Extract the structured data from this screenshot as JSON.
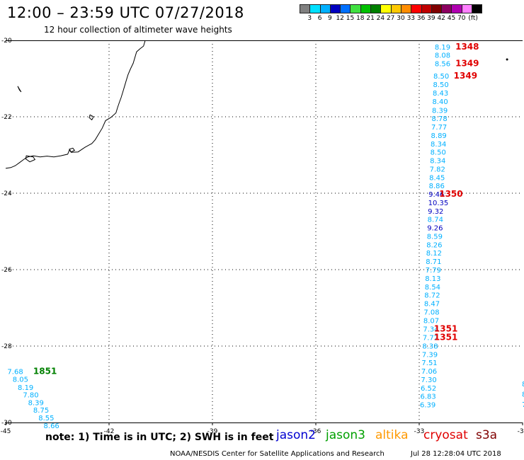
{
  "header": {
    "title": "12:00 – 23:59 UTC 07/27/2018",
    "subtitle": "12 hour collection of altimeter wave heights"
  },
  "colorbar": {
    "colors": [
      "#808080",
      "#00e0ff",
      "#00b0ff",
      "#0000c0",
      "#0070ff",
      "#40e040",
      "#00c000",
      "#008000",
      "#ffff00",
      "#ffc800",
      "#ff8c00",
      "#ff0000",
      "#c00000",
      "#800000",
      "#8c0060",
      "#b000b0",
      "#ff80ff",
      "#000000"
    ],
    "labels": [
      "3",
      "6",
      "9",
      "12",
      "15",
      "18",
      "21",
      "24",
      "27",
      "30",
      "33",
      "36",
      "39",
      "42",
      "45",
      "70",
      "(ft)"
    ]
  },
  "map": {
    "lon_range": [
      -45,
      -30
    ],
    "lat_range": [
      -30,
      -20
    ],
    "lon_ticks": [
      "-45",
      "-42",
      "-39",
      "-36",
      "-33",
      "-30"
    ],
    "lat_ticks": [
      "-20",
      "-22",
      "-24",
      "-26",
      "-28",
      "-30"
    ],
    "tracks": [
      {
        "satellite": "cryosat",
        "points": [
          {
            "lon": -32.55,
            "lat": -20.17,
            "value": "8.19",
            "color": "#00b0ff"
          },
          {
            "lon": -32.55,
            "lat": -20.38,
            "value": "8.08",
            "color": "#00b0ff"
          },
          {
            "lon": -32.55,
            "lat": -20.6,
            "value": "8.56",
            "color": "#00b0ff"
          },
          {
            "lon": -32.59,
            "lat": -20.93,
            "value": "8.50",
            "color": "#00b0ff"
          },
          {
            "lon": -32.6,
            "lat": -21.15,
            "value": "8.50",
            "color": "#00b0ff"
          },
          {
            "lon": -32.61,
            "lat": -21.37,
            "value": "8.43",
            "color": "#00b0ff"
          },
          {
            "lon": -32.62,
            "lat": -21.59,
            "value": "8.40",
            "color": "#00b0ff"
          },
          {
            "lon": -32.63,
            "lat": -21.82,
            "value": "8.39",
            "color": "#00b0ff"
          },
          {
            "lon": -32.64,
            "lat": -22.04,
            "value": "8.78",
            "color": "#00b0ff"
          },
          {
            "lon": -32.65,
            "lat": -22.26,
            "value": "7.77",
            "color": "#00b0ff"
          },
          {
            "lon": -32.66,
            "lat": -22.48,
            "value": "8.89",
            "color": "#00b0ff"
          },
          {
            "lon": -32.67,
            "lat": -22.7,
            "value": "8.34",
            "color": "#00b0ff"
          },
          {
            "lon": -32.68,
            "lat": -22.92,
            "value": "8.50",
            "color": "#00b0ff"
          },
          {
            "lon": -32.69,
            "lat": -23.14,
            "value": "8.34",
            "color": "#00b0ff"
          },
          {
            "lon": -32.7,
            "lat": -23.36,
            "value": "7.82",
            "color": "#00b0ff"
          },
          {
            "lon": -32.71,
            "lat": -23.58,
            "value": "8.45",
            "color": "#00b0ff"
          },
          {
            "lon": -32.72,
            "lat": -23.8,
            "value": "8.86",
            "color": "#00b0ff"
          },
          {
            "lon": -32.73,
            "lat": -24.02,
            "value": "9.46",
            "color": "#0000c0"
          },
          {
            "lon": -32.74,
            "lat": -24.24,
            "value": "10.35",
            "color": "#0000c0"
          },
          {
            "lon": -32.75,
            "lat": -24.46,
            "value": "9.32",
            "color": "#0000c0"
          },
          {
            "lon": -32.76,
            "lat": -24.68,
            "value": "8.74",
            "color": "#00b0ff"
          },
          {
            "lon": -32.77,
            "lat": -24.9,
            "value": "9.26",
            "color": "#0000c0"
          },
          {
            "lon": -32.78,
            "lat": -25.12,
            "value": "8.59",
            "color": "#00b0ff"
          },
          {
            "lon": -32.79,
            "lat": -25.34,
            "value": "8.26",
            "color": "#00b0ff"
          },
          {
            "lon": -32.8,
            "lat": -25.56,
            "value": "8.12",
            "color": "#00b0ff"
          },
          {
            "lon": -32.81,
            "lat": -25.78,
            "value": "8.71",
            "color": "#00b0ff"
          },
          {
            "lon": -32.82,
            "lat": -26.0,
            "value": "7.79",
            "color": "#00b0ff"
          },
          {
            "lon": -32.83,
            "lat": -26.22,
            "value": "8.13",
            "color": "#00b0ff"
          },
          {
            "lon": -32.84,
            "lat": -26.44,
            "value": "8.54",
            "color": "#00b0ff"
          },
          {
            "lon": -32.85,
            "lat": -26.66,
            "value": "8.72",
            "color": "#00b0ff"
          },
          {
            "lon": -32.86,
            "lat": -26.88,
            "value": "8.47",
            "color": "#00b0ff"
          },
          {
            "lon": -32.87,
            "lat": -27.1,
            "value": "7.08",
            "color": "#00b0ff"
          },
          {
            "lon": -32.88,
            "lat": -27.32,
            "value": "8.07",
            "color": "#00b0ff"
          },
          {
            "lon": -32.89,
            "lat": -27.55,
            "value": "7.34",
            "color": "#00b0ff"
          },
          {
            "lon": -32.9,
            "lat": -27.77,
            "value": "7.72",
            "color": "#00b0ff"
          },
          {
            "lon": -32.91,
            "lat": -27.99,
            "value": "8.38",
            "color": "#00b0ff"
          },
          {
            "lon": -32.92,
            "lat": -28.21,
            "value": "7.39",
            "color": "#00b0ff"
          },
          {
            "lon": -32.93,
            "lat": -28.43,
            "value": "7.51",
            "color": "#00b0ff"
          },
          {
            "lon": -32.94,
            "lat": -28.65,
            "value": "7.06",
            "color": "#00b0ff"
          },
          {
            "lon": -32.95,
            "lat": -28.87,
            "value": "7.30",
            "color": "#00b0ff"
          },
          {
            "lon": -32.96,
            "lat": -29.09,
            "value": "6.52",
            "color": "#00b0ff"
          },
          {
            "lon": -32.97,
            "lat": -29.31,
            "value": "6.83",
            "color": "#00b0ff"
          },
          {
            "lon": -32.98,
            "lat": -29.53,
            "value": "6.39",
            "color": "#00b0ff"
          }
        ]
      },
      {
        "satellite": "jason3",
        "points": [
          {
            "lon": -44.95,
            "lat": -28.66,
            "value": "7.68",
            "color": "#00b0ff"
          },
          {
            "lon": -44.8,
            "lat": -28.86,
            "value": "8.05",
            "color": "#00b0ff"
          },
          {
            "lon": -44.65,
            "lat": -29.07,
            "value": "8.19",
            "color": "#00b0ff"
          },
          {
            "lon": -44.5,
            "lat": -29.27,
            "value": "7.80",
            "color": "#00b0ff"
          },
          {
            "lon": -44.35,
            "lat": -29.47,
            "value": "8.39",
            "color": "#00b0ff"
          },
          {
            "lon": -44.2,
            "lat": -29.67,
            "value": "8.75",
            "color": "#00b0ff"
          },
          {
            "lon": -44.05,
            "lat": -29.87,
            "value": "8.55",
            "color": "#00b0ff"
          },
          {
            "lon": -43.9,
            "lat": -30.07,
            "value": "8.66",
            "color": "#00b0ff"
          }
        ]
      }
    ],
    "pass_labels": [
      {
        "lon": -31.95,
        "lat": -20.17,
        "text": "1348",
        "color": "#e00000"
      },
      {
        "lon": -31.95,
        "lat": -20.6,
        "text": "1349",
        "color": "#e00000"
      },
      {
        "lon": -32.0,
        "lat": -20.93,
        "text": "1349",
        "color": "#e00000"
      },
      {
        "lon": -32.42,
        "lat": -24.02,
        "text": "1350",
        "color": "#e00000"
      },
      {
        "lon": -32.57,
        "lat": -27.55,
        "text": "1351",
        "color": "#e00000"
      },
      {
        "lon": -32.57,
        "lat": -27.77,
        "text": "1351",
        "color": "#e00000"
      },
      {
        "lon": -44.2,
        "lat": -28.66,
        "text": "1851",
        "color": "#008000"
      }
    ],
    "edge_labels": [
      {
        "lon": -30.02,
        "lat": -28.98,
        "text": "8",
        "color": "#00b0ff"
      },
      {
        "lon": -30.02,
        "lat": -29.25,
        "text": "8",
        "color": "#00b0ff"
      },
      {
        "lon": -30.02,
        "lat": -29.52,
        "text": "7.",
        "color": "#00b0ff"
      }
    ],
    "coast_points": [
      [
        -40.95,
        -20.0
      ],
      [
        -41.0,
        -20.15
      ],
      [
        -41.1,
        -20.22
      ],
      [
        -41.2,
        -20.3
      ],
      [
        -41.25,
        -20.45
      ],
      [
        -41.3,
        -20.6
      ],
      [
        -41.38,
        -20.75
      ],
      [
        -41.45,
        -20.9
      ],
      [
        -41.5,
        -21.05
      ],
      [
        -41.55,
        -21.2
      ],
      [
        -41.6,
        -21.35
      ],
      [
        -41.65,
        -21.5
      ],
      [
        -41.7,
        -21.62
      ],
      [
        -41.75,
        -21.75
      ],
      [
        -41.8,
        -21.9
      ],
      [
        -41.95,
        -22.02
      ],
      [
        -42.1,
        -22.1
      ],
      [
        -42.2,
        -22.3
      ],
      [
        -42.3,
        -22.45
      ],
      [
        -42.4,
        -22.6
      ],
      [
        -42.5,
        -22.7
      ],
      [
        -42.7,
        -22.8
      ],
      [
        -42.9,
        -22.92
      ],
      [
        -43.1,
        -22.93
      ],
      [
        -43.15,
        -22.87
      ],
      [
        -43.2,
        -22.98
      ],
      [
        -43.4,
        -23.02
      ],
      [
        -43.6,
        -23.05
      ],
      [
        -43.8,
        -23.03
      ],
      [
        -44.0,
        -23.05
      ],
      [
        -44.2,
        -23.02
      ],
      [
        -44.35,
        -23.05
      ],
      [
        -44.45,
        -23.1
      ],
      [
        -44.6,
        -23.2
      ],
      [
        -44.72,
        -23.28
      ],
      [
        -44.85,
        -23.33
      ],
      [
        -45.0,
        -23.35
      ]
    ],
    "islands": [
      [
        [
          -44.65,
          -21.2
        ],
        [
          -44.6,
          -21.3
        ],
        [
          -44.55,
          -21.35
        ],
        [
          -44.6,
          -21.28
        ]
      ],
      [
        [
          -42.55,
          -21.95
        ],
        [
          -42.45,
          -22.0
        ],
        [
          -42.5,
          -22.08
        ],
        [
          -42.58,
          -22.02
        ]
      ],
      [
        [
          -43.15,
          -22.85
        ],
        [
          -43.05,
          -22.82
        ],
        [
          -43.0,
          -22.88
        ],
        [
          -43.1,
          -22.92
        ]
      ],
      [
        [
          -44.4,
          -23.02
        ],
        [
          -44.2,
          -23.05
        ],
        [
          -44.15,
          -23.12
        ],
        [
          -44.3,
          -23.18
        ],
        [
          -44.42,
          -23.1
        ]
      ]
    ],
    "dot": {
      "lon": -30.45,
      "lat": -20.5
    }
  },
  "legend": {
    "note": "note:  1) Time is in UTC;  2) SWH is in feet",
    "satellites": [
      {
        "name": "jason2",
        "color": "#0000d0"
      },
      {
        "name": "jason3",
        "color": "#00a000"
      },
      {
        "name": "altika",
        "color": "#ff9900"
      },
      {
        "name": "cryosat",
        "color": "#e00000"
      },
      {
        "name": "s3a",
        "color": "#800000"
      }
    ]
  },
  "footer": {
    "credit": "NOAA/NESDIS Center for Satellite Applications and Research",
    "timestamp": "Jul 28 12:28:04 UTC 2018"
  }
}
